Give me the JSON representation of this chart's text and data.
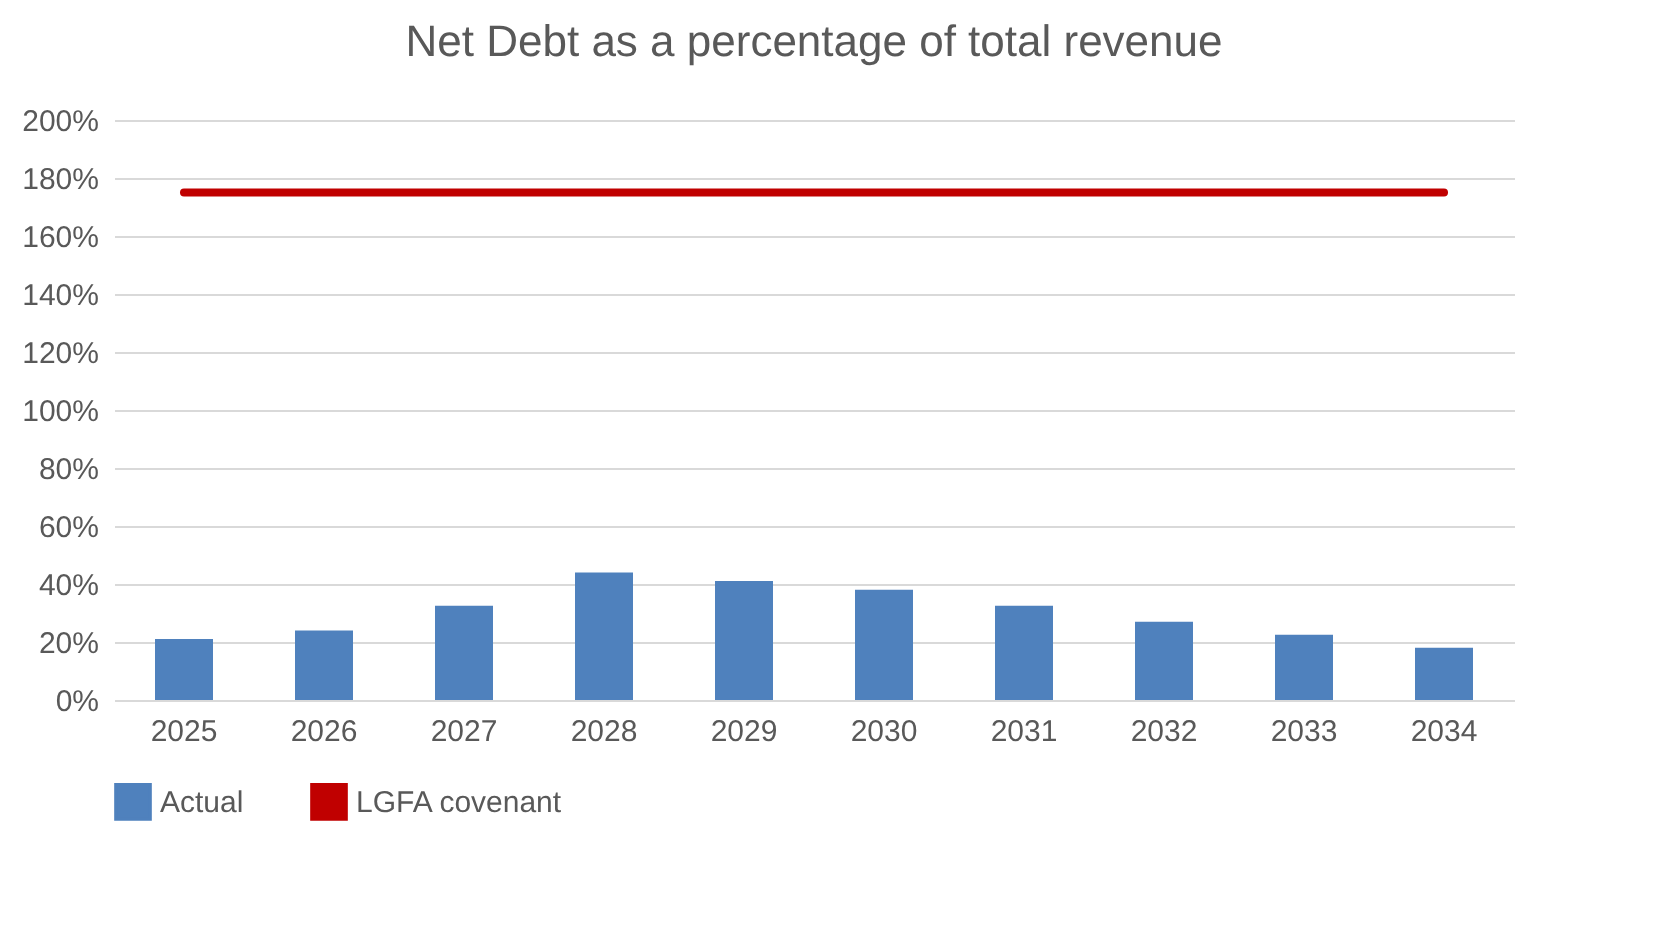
{
  "chart_data": {
    "type": "bar",
    "title": "Net Debt as a percentage of total revenue",
    "categories": [
      "2025",
      "2026",
      "2027",
      "2028",
      "2029",
      "2030",
      "2031",
      "2032",
      "2033",
      "2034"
    ],
    "series": [
      {
        "name": "Actual",
        "color": "#4f81bd",
        "values": [
          21,
          24,
          32.5,
          44,
          41,
          38,
          32.5,
          27,
          22.5,
          18
        ]
      },
      {
        "name": "LGFA covenant",
        "type": "line",
        "color": "#c00000",
        "values": [
          175,
          175,
          175,
          175,
          175,
          175,
          175,
          175,
          175,
          175
        ]
      }
    ],
    "ylim": [
      0,
      200
    ],
    "yticks": [
      {
        "value": 0,
        "label": "0%"
      },
      {
        "value": 20,
        "label": "20%"
      },
      {
        "value": 40,
        "label": "40%"
      },
      {
        "value": 60,
        "label": "60%"
      },
      {
        "value": 80,
        "label": "80%"
      },
      {
        "value": 100,
        "label": "100%"
      },
      {
        "value": 120,
        "label": "120%"
      },
      {
        "value": 140,
        "label": "140%"
      },
      {
        "value": 160,
        "label": "160%"
      },
      {
        "value": 180,
        "label": "180%"
      },
      {
        "value": 200,
        "label": "200%"
      }
    ],
    "grid": "y",
    "legend": "bottom"
  }
}
